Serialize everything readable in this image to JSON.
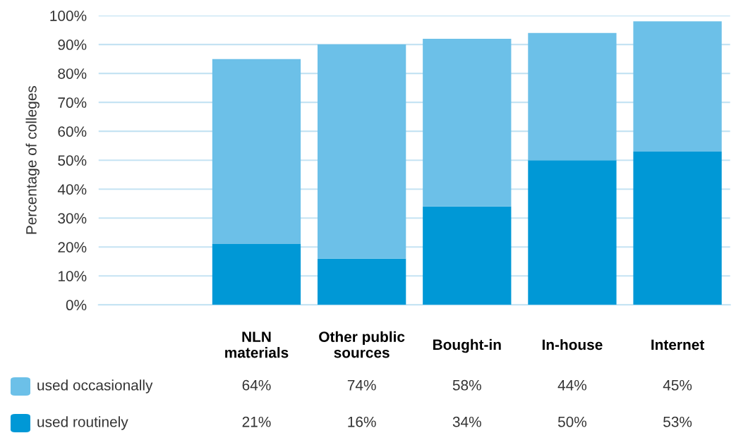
{
  "chart_data": {
    "type": "bar",
    "stacked": true,
    "ylabel": "Percentage of colleges",
    "categories": [
      null,
      "NLN\nmaterials",
      "Other public\nsources",
      "Bought-in",
      "In-house",
      "Internet"
    ],
    "series": [
      {
        "name": "used routinely",
        "color": "#0098d6",
        "values": [
          null,
          21,
          16,
          34,
          50,
          53
        ],
        "value_labels": [
          null,
          "21%",
          "16%",
          "34%",
          "50%",
          "53%"
        ]
      },
      {
        "name": "used occasionally",
        "color": "#6cc0e8",
        "values": [
          null,
          64,
          74,
          58,
          44,
          45
        ],
        "value_labels": [
          null,
          "64%",
          "74%",
          "58%",
          "44%",
          "45%"
        ]
      }
    ],
    "ylim": [
      0,
      100
    ],
    "yticks": [
      {
        "value": 0,
        "label": "0%"
      },
      {
        "value": 10,
        "label": "10%"
      },
      {
        "value": 20,
        "label": "20%"
      },
      {
        "value": 30,
        "label": "30%"
      },
      {
        "value": 40,
        "label": "40%"
      },
      {
        "value": 50,
        "label": "50%"
      },
      {
        "value": 60,
        "label": "60%"
      },
      {
        "value": 70,
        "label": "70%"
      },
      {
        "value": 80,
        "label": "80%"
      },
      {
        "value": 90,
        "label": "90%"
      },
      {
        "value": 100,
        "label": "100%"
      }
    ],
    "grid": "y",
    "legend": "bottom"
  }
}
